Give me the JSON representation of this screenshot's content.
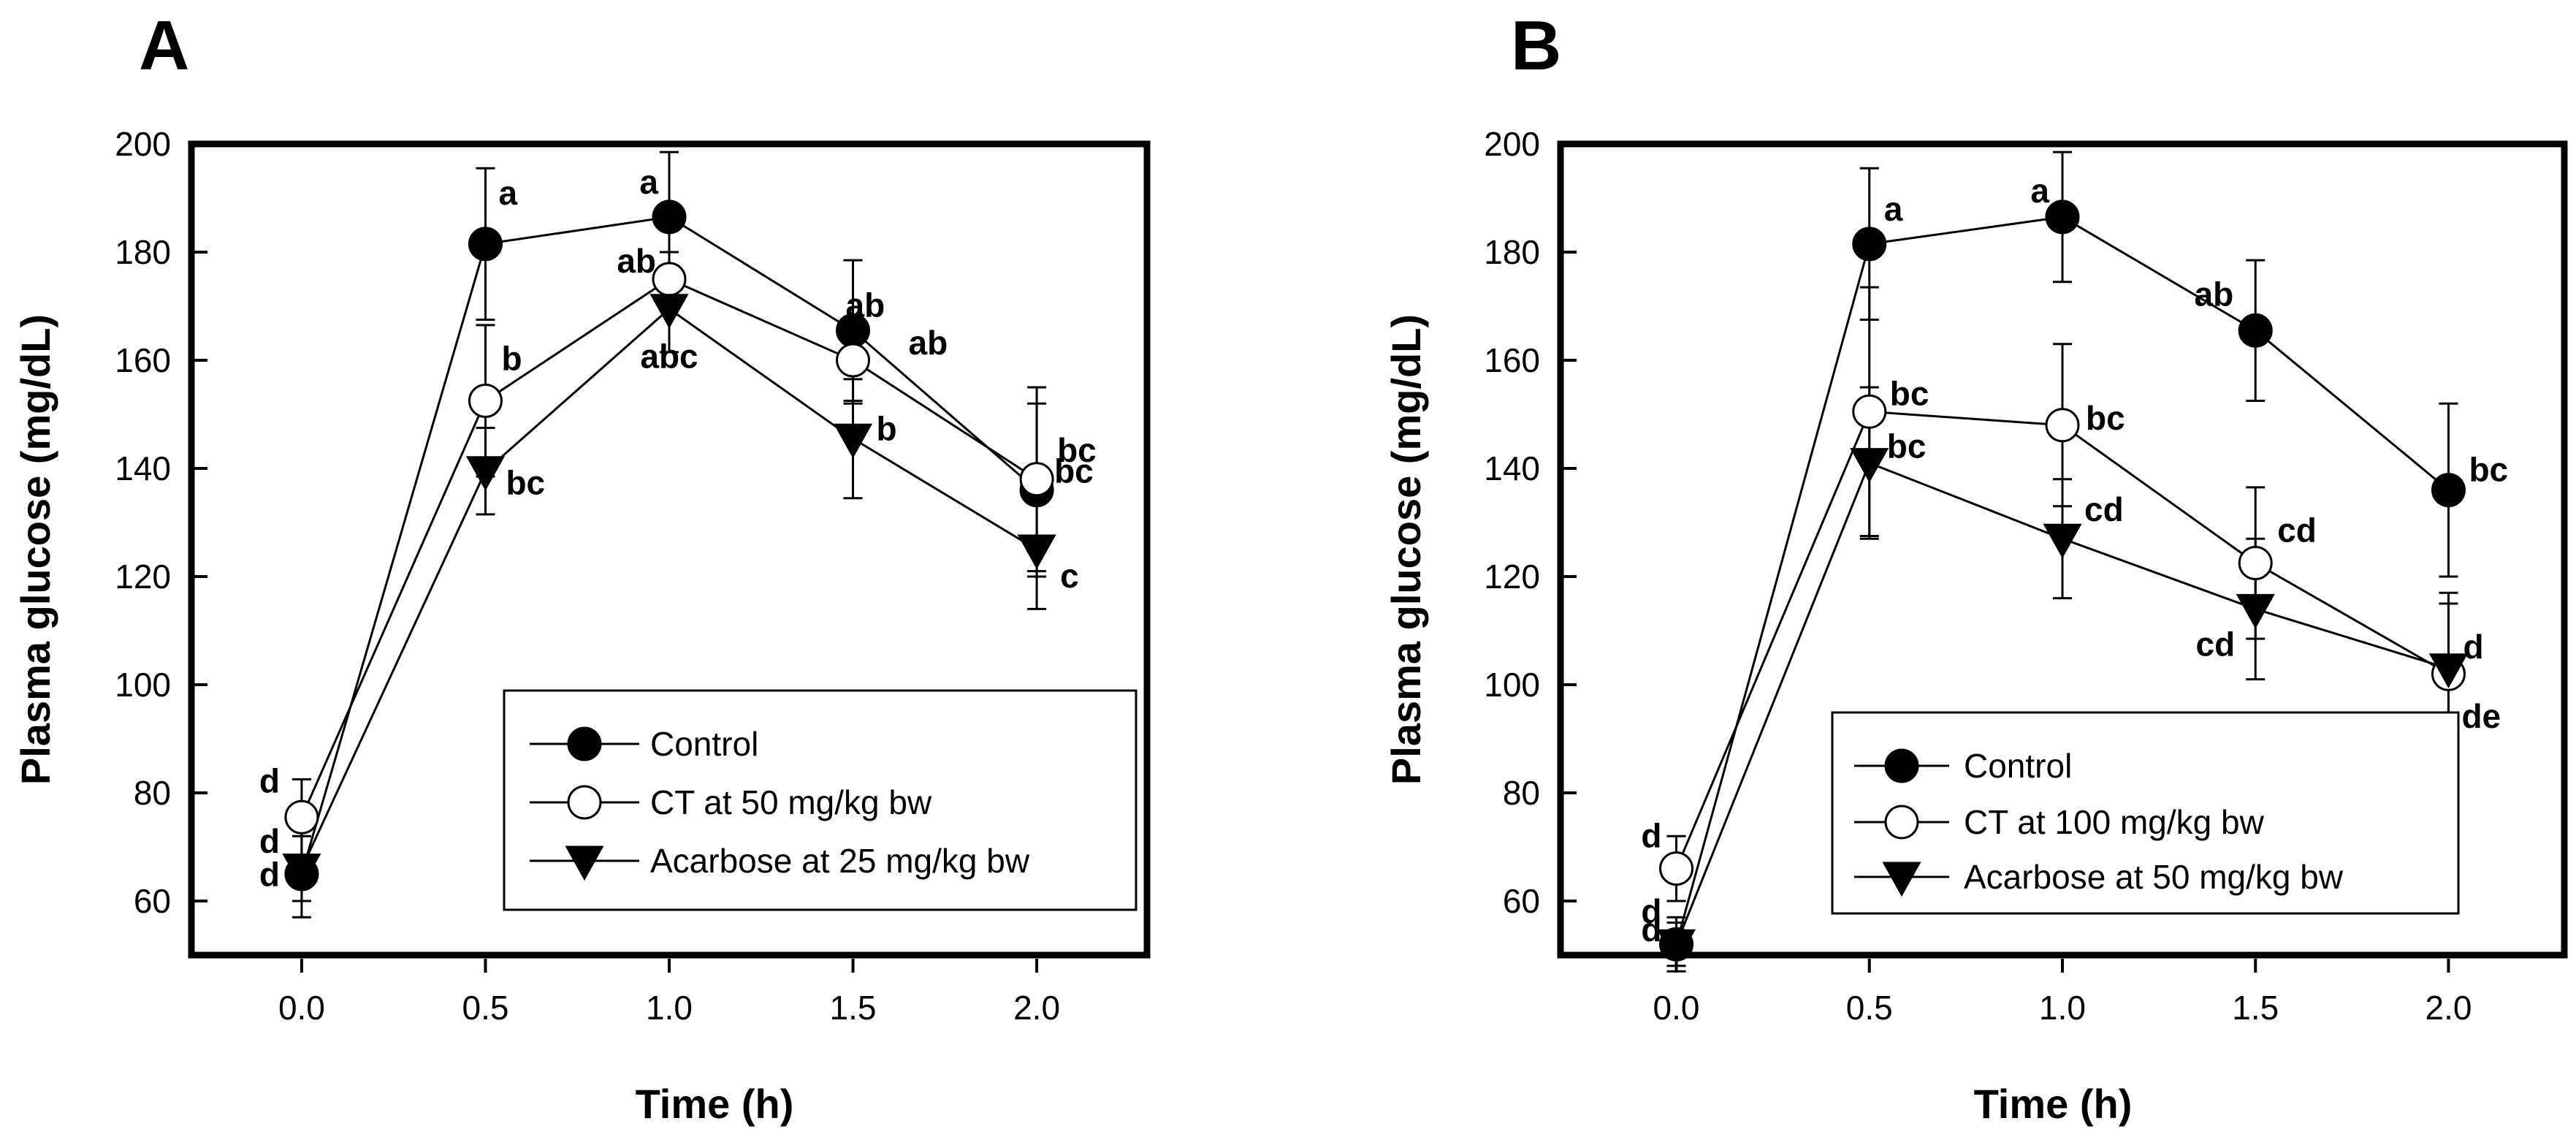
{
  "chart_data": [
    {
      "panel": "A",
      "type": "line",
      "xlabel": "Time (h)",
      "ylabel": "Plasma glucose (mg/dL)",
      "xlim": [
        -0.3,
        2.3
      ],
      "ylim": [
        50,
        200
      ],
      "x": [
        0.0,
        0.5,
        1.0,
        1.5,
        2.0
      ],
      "xtick_labels": [
        "0.0",
        "0.5",
        "1.0",
        "1.5",
        "2.0"
      ],
      "yticks": [
        60,
        80,
        100,
        120,
        140,
        160,
        180,
        200
      ],
      "ytick_labels": [
        "60",
        "80",
        "100",
        "120",
        "140",
        "160",
        "180",
        "200"
      ],
      "series": [
        {
          "name": "Control",
          "marker": "filled-circle",
          "values": [
            65,
            181.5,
            186.5,
            165.5,
            136
          ],
          "errors": [
            8,
            14,
            12,
            13,
            16
          ],
          "letters": [
            "d",
            "a",
            "a",
            "ab",
            "bc"
          ]
        },
        {
          "name": "CT at 50 mg/kg bw",
          "marker": "open-circle",
          "values": [
            75.5,
            152.5,
            175,
            160,
            138
          ],
          "errors": [
            7,
            14,
            5,
            8,
            17
          ],
          "letters": [
            "d",
            "b",
            "ab",
            "ab",
            "bc"
          ]
        },
        {
          "name": "Acarbose at 25 mg/kg bw",
          "marker": "filled-triangle-down",
          "values": [
            66,
            139.5,
            169.5,
            145.5,
            125
          ],
          "errors": [
            6,
            8,
            8,
            11,
            11
          ],
          "letters": [
            "d",
            "bc",
            "abc",
            "b",
            "c"
          ]
        }
      ]
    },
    {
      "panel": "B",
      "type": "line",
      "xlabel": "Time (h)",
      "ylabel": "Plasma glucose (mg/dL)",
      "xlim": [
        -0.3,
        2.3
      ],
      "ylim": [
        50,
        200
      ],
      "x": [
        0.0,
        0.5,
        1.0,
        1.5,
        2.0
      ],
      "xtick_labels": [
        "0.0",
        "0.5",
        "1.0",
        "1.5",
        "2.0"
      ],
      "yticks": [
        60,
        80,
        100,
        120,
        140,
        160,
        180,
        200
      ],
      "ytick_labels": [
        "60",
        "80",
        "100",
        "120",
        "140",
        "160",
        "180",
        "200"
      ],
      "series": [
        {
          "name": "Control",
          "marker": "filled-circle",
          "values": [
            52,
            181.5,
            186.5,
            165.5,
            136
          ],
          "errors": [
            5,
            14,
            12,
            13,
            16
          ],
          "letters": [
            "d",
            "a",
            "a",
            "ab",
            "bc"
          ]
        },
        {
          "name": "CT at 100 mg/kg bw",
          "marker": "open-circle",
          "values": [
            66,
            150.5,
            148,
            122.5,
            102
          ],
          "errors": [
            6,
            23,
            15,
            14,
            13
          ],
          "letters": [
            "d",
            "bc",
            "bc",
            "cd",
            "de"
          ]
        },
        {
          "name": "Acarbose at 50 mg/kg bw",
          "marker": "filled-triangle-down",
          "values": [
            52,
            141,
            127,
            114,
            103
          ],
          "errors": [
            4,
            14,
            11,
            13,
            14
          ],
          "letters": [
            "d",
            "bc",
            "cd",
            "cd",
            "d"
          ]
        }
      ]
    }
  ]
}
